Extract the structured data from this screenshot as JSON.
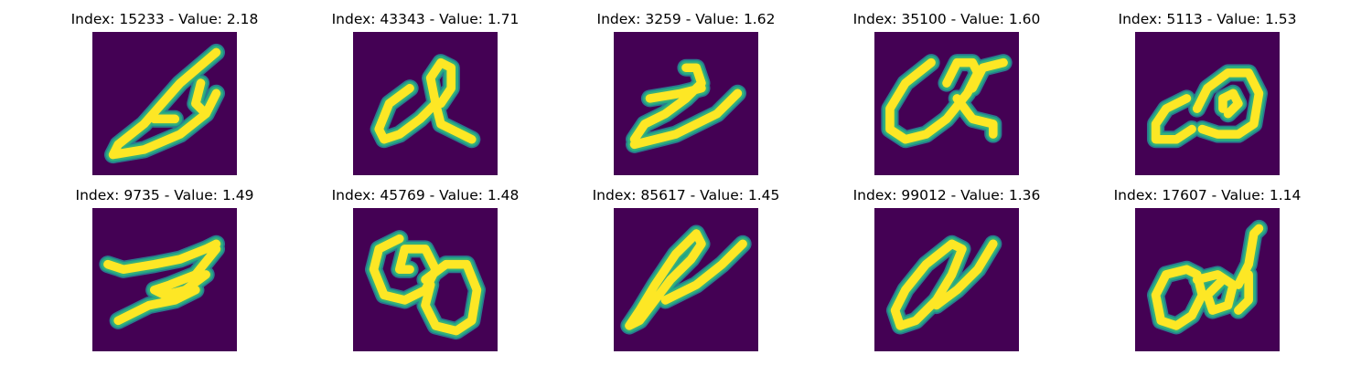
{
  "figure": {
    "colors": {
      "background": "#440154",
      "ink_core": "#fde725",
      "ink_edge": "#3aaf7a",
      "ink_mid": "#22a884",
      "ink_soft": "#2a788e"
    },
    "panels": [
      {
        "title": "Index: 15233 - Value: 2.18",
        "index": 15233,
        "value": 2.18
      },
      {
        "title": "Index: 43343 - Value: 1.71",
        "index": 43343,
        "value": 1.71
      },
      {
        "title": "Index: 3259 - Value: 1.62",
        "index": 3259,
        "value": 1.62
      },
      {
        "title": "Index: 35100 - Value: 1.60",
        "index": 35100,
        "value": 1.6
      },
      {
        "title": "Index: 5113 - Value: 1.53",
        "index": 5113,
        "value": 1.53
      },
      {
        "title": "Index: 9735 - Value: 1.49",
        "index": 9735,
        "value": 1.49
      },
      {
        "title": "Index: 45769 - Value: 1.48",
        "index": 45769,
        "value": 1.48
      },
      {
        "title": "Index: 85617 - Value: 1.45",
        "index": 85617,
        "value": 1.45
      },
      {
        "title": "Index: 99012 - Value: 1.36",
        "index": 99012,
        "value": 1.36
      },
      {
        "title": "Index: 17607 - Value: 1.14",
        "index": 17607,
        "value": 1.14
      }
    ]
  }
}
